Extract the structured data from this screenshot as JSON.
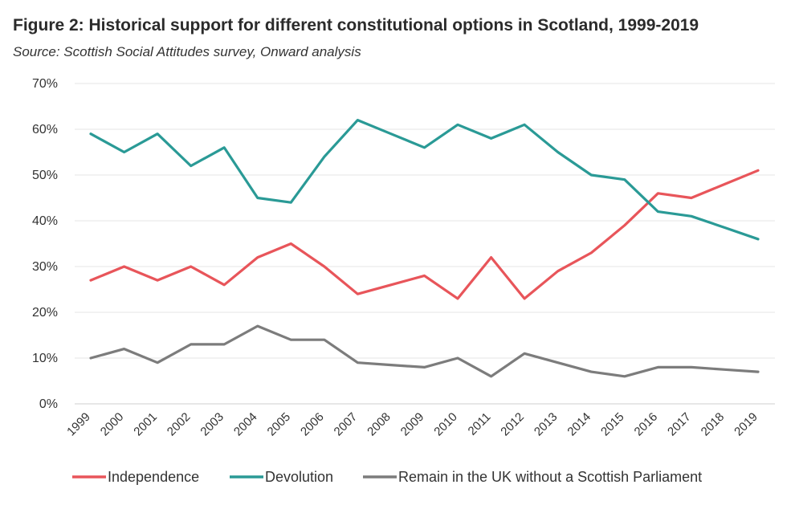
{
  "figure": {
    "title": "Figure 2: Historical support for different constitutional options in Scotland, 1999-2019",
    "source": "Source: Scottish Social Attitudes survey, Onward analysis"
  },
  "chart_data": {
    "type": "line",
    "title": "Figure 2: Historical support for different constitutional options in Scotland, 1999-2019",
    "subtitle": "Source: Scottish Social Attitudes survey, Onward analysis",
    "x": [
      "1999",
      "2000",
      "2001",
      "2002",
      "2003",
      "2004",
      "2005",
      "2006",
      "2007",
      "2008",
      "2009",
      "2010",
      "2011",
      "2012",
      "2013",
      "2014",
      "2015",
      "2016",
      "2017",
      "2018",
      "2019"
    ],
    "ylim": [
      0,
      70
    ],
    "yticks": [
      "0%",
      "10%",
      "20%",
      "30%",
      "40%",
      "50%",
      "60%",
      "70%"
    ],
    "grid": true,
    "legend_position": "bottom",
    "series": [
      {
        "name": "Independence",
        "color": "#e8555a",
        "values": [
          27,
          30,
          27,
          30,
          26,
          32,
          35,
          30,
          24,
          26,
          28,
          23,
          32,
          23,
          29,
          33,
          39,
          46,
          45,
          48,
          51
        ]
      },
      {
        "name": "Devolution",
        "color": "#2a9a96",
        "values": [
          59,
          55,
          59,
          52,
          56,
          45,
          44,
          54,
          62,
          59,
          56,
          61,
          58,
          61,
          55,
          50,
          49,
          42,
          41,
          38.5,
          36
        ]
      },
      {
        "name": "Remain in the UK without a Scottish Parliament",
        "color": "#7c7c7c",
        "values": [
          10,
          12,
          9,
          13,
          13,
          17,
          14,
          14,
          9,
          8.5,
          8,
          10,
          6,
          11,
          9,
          7,
          6,
          8,
          8,
          7.5,
          7
        ]
      }
    ]
  }
}
